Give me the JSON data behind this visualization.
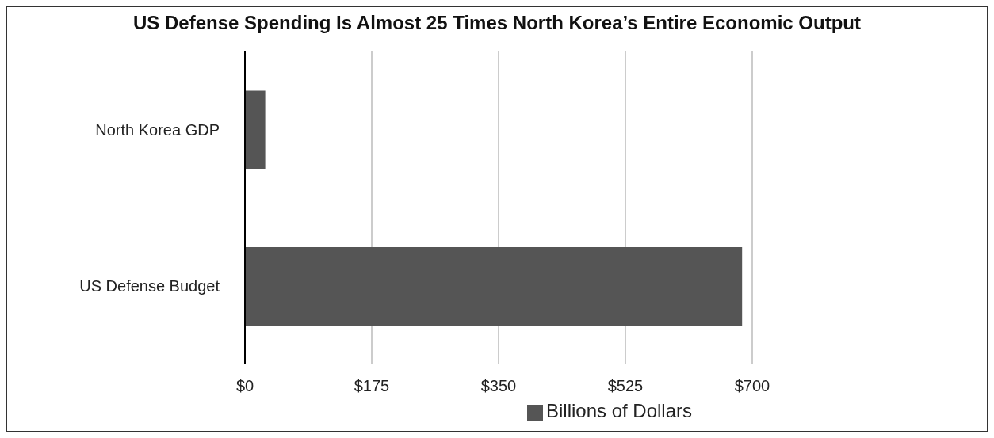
{
  "chart_data": {
    "type": "bar",
    "orientation": "horizontal",
    "title": "US Defense Spending Is Almost 25 Times North Korea’s Entire Economic Output",
    "categories": [
      "North Korea GDP",
      "US Defense Budget"
    ],
    "series": [
      {
        "name": "Billions of Dollars",
        "color": "#555555",
        "values": [
          28,
          686
        ]
      }
    ],
    "xlim": [
      0,
      700
    ],
    "xticks": [
      {
        "value": 0,
        "label": "$0"
      },
      {
        "value": 175,
        "label": "$175"
      },
      {
        "value": 350,
        "label": "$350"
      },
      {
        "value": 525,
        "label": "$525"
      },
      {
        "value": 700,
        "label": "$700"
      }
    ],
    "grid": "x",
    "legend": "bottom"
  }
}
